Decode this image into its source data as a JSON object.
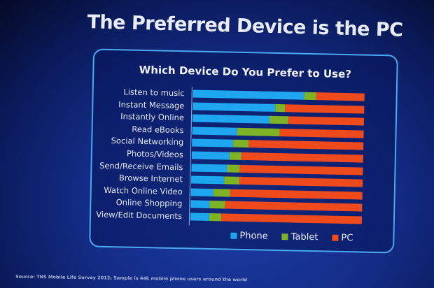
{
  "slide_title": "The Preferred Device is the PC",
  "source": "Source: TNS Mobile Life Survey 2012; Sample is 44k mobile phone users around the world",
  "chart_data": {
    "type": "bar",
    "orientation": "horizontal-stacked-percent",
    "title": "Which Device Do You Prefer to Use?",
    "categories": [
      "Listen to music",
      "Instant Message",
      "Instantly Online",
      "Read eBooks",
      "Social Networking",
      "Photos/Videos",
      "Send/Receive Emails",
      "Browse Internet",
      "Watch Online Video",
      "Online Shopping",
      "View/Edit Documents"
    ],
    "series": [
      {
        "name": "Phone",
        "color": "#1ea6f0",
        "values": [
          65,
          48,
          45,
          26,
          24,
          22,
          21,
          19,
          13,
          11,
          11
        ]
      },
      {
        "name": "Tablet",
        "color": "#7fb327",
        "values": [
          7,
          6,
          11,
          25,
          9,
          7,
          7,
          9,
          10,
          9,
          7
        ]
      },
      {
        "name": "PC",
        "color": "#ee4a1c",
        "values": [
          28,
          46,
          44,
          49,
          67,
          71,
          72,
          72,
          77,
          80,
          82
        ]
      }
    ],
    "xlim": [
      0,
      100
    ],
    "legend": "bottom"
  }
}
